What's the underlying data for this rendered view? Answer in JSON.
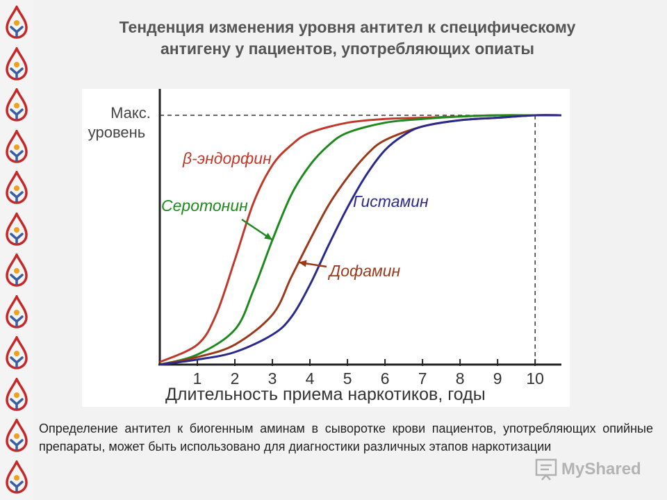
{
  "title_line1": "Тенденция изменения уровня антител к специфическому",
  "title_line2": "антигену у пациентов, употребляющих опиаты",
  "caption": "Определение антител к биогенным аминам в сыворотке крови пациентов, употребляющих опийные препараты, может быть использовано для диагностики различных этапов наркотизации",
  "watermark": "MyShared",
  "chart_data": {
    "type": "line",
    "title": "",
    "xlabel": "Длительность приема наркотиков, годы",
    "ylabel_line1": "Макс.",
    "ylabel_line2": "уровень",
    "xlim": [
      0,
      10.7
    ],
    "ylim": [
      0,
      1.05
    ],
    "x_ticks": [
      1,
      2,
      3,
      4,
      5,
      6,
      7,
      8,
      9,
      10
    ],
    "grid": false,
    "max_level_reference": 1.0,
    "x_reference": 10,
    "series": [
      {
        "name": "β-эндорфин",
        "color": "#c0392b",
        "x": [
          0,
          1,
          1.5,
          2,
          2.5,
          3,
          3.5,
          4,
          5,
          6,
          7,
          8,
          9,
          10,
          10.7
        ],
        "y": [
          0.01,
          0.08,
          0.2,
          0.42,
          0.65,
          0.8,
          0.88,
          0.93,
          0.97,
          0.985,
          0.99,
          0.995,
          1.0,
          1.0,
          1.0
        ]
      },
      {
        "name": "Серотонин",
        "color": "#1e8a1e",
        "x": [
          0,
          1,
          2,
          2.5,
          3,
          3.5,
          4,
          4.5,
          5,
          6,
          7,
          8,
          9,
          10,
          10.7
        ],
        "y": [
          0.0,
          0.04,
          0.14,
          0.3,
          0.5,
          0.68,
          0.8,
          0.88,
          0.93,
          0.97,
          0.985,
          0.995,
          1.0,
          1.0,
          1.0
        ]
      },
      {
        "name": "Дофамин",
        "color": "#9a3a1a",
        "x": [
          0,
          1,
          2,
          3,
          3.5,
          4,
          4.5,
          5,
          5.5,
          6,
          7,
          8,
          9,
          10,
          10.7
        ],
        "y": [
          0.0,
          0.03,
          0.08,
          0.2,
          0.35,
          0.5,
          0.64,
          0.75,
          0.84,
          0.9,
          0.955,
          0.98,
          0.99,
          1.0,
          1.0
        ]
      },
      {
        "name": "Гистамин",
        "color": "#2a2a8c",
        "x": [
          0,
          1,
          2,
          3,
          3.5,
          4,
          4.5,
          5,
          5.5,
          6,
          6.5,
          7,
          8,
          9,
          10,
          10.7
        ],
        "y": [
          0.0,
          0.02,
          0.05,
          0.12,
          0.19,
          0.32,
          0.48,
          0.63,
          0.76,
          0.86,
          0.92,
          0.955,
          0.98,
          0.99,
          1.0,
          1.0
        ]
      }
    ],
    "annotations": [
      {
        "series": "β-эндорфин",
        "label": "β-эндорфин"
      },
      {
        "series": "Серотонин",
        "label": "Серотонин"
      },
      {
        "series": "Гистамин",
        "label": "Гистамин"
      },
      {
        "series": "Дофамин",
        "label": "Дофамин"
      }
    ]
  },
  "colors": {
    "logo_red": "#c62828",
    "logo_orange": "#f0a020",
    "logo_blue": "#3a5fa0",
    "axis": "#222222",
    "reference_line": "#333333"
  },
  "icons": {
    "logo": "drop-person-logo-icon",
    "watermark": "presentation-icon"
  }
}
